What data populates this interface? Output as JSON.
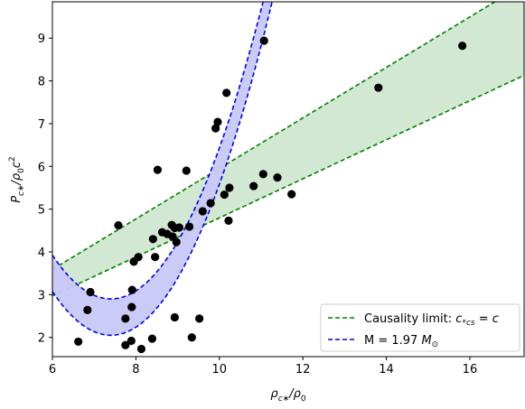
{
  "chart_data": {
    "type": "scatter",
    "xlabel": "ρ_{c*}/ρ_0",
    "ylabel": "P_{c*}/ρ_0 c^2",
    "xlim": [
      6.0,
      17.3
    ],
    "ylim": [
      1.55,
      9.85
    ],
    "xticks": [
      6,
      8,
      10,
      12,
      14,
      16
    ],
    "yticks": [
      2,
      3,
      4,
      5,
      6,
      7,
      8,
      9
    ],
    "grid": false,
    "legend_position": "lower-right",
    "points": [
      {
        "x": 6.62,
        "y": 1.9
      },
      {
        "x": 6.84,
        "y": 2.64
      },
      {
        "x": 6.91,
        "y": 3.06
      },
      {
        "x": 7.58,
        "y": 4.62
      },
      {
        "x": 7.75,
        "y": 2.44
      },
      {
        "x": 7.75,
        "y": 1.82
      },
      {
        "x": 7.89,
        "y": 1.92
      },
      {
        "x": 7.9,
        "y": 2.71
      },
      {
        "x": 7.91,
        "y": 3.11
      },
      {
        "x": 7.95,
        "y": 3.77
      },
      {
        "x": 8.06,
        "y": 3.88
      },
      {
        "x": 8.13,
        "y": 1.73
      },
      {
        "x": 8.39,
        "y": 1.97
      },
      {
        "x": 8.41,
        "y": 4.3
      },
      {
        "x": 8.46,
        "y": 3.88
      },
      {
        "x": 8.52,
        "y": 5.92
      },
      {
        "x": 8.63,
        "y": 4.46
      },
      {
        "x": 8.75,
        "y": 4.42
      },
      {
        "x": 8.86,
        "y": 4.63
      },
      {
        "x": 8.88,
        "y": 4.36
      },
      {
        "x": 8.93,
        "y": 2.47
      },
      {
        "x": 8.93,
        "y": 4.56
      },
      {
        "x": 8.97,
        "y": 4.23
      },
      {
        "x": 9.04,
        "y": 4.57
      },
      {
        "x": 9.21,
        "y": 5.9
      },
      {
        "x": 9.28,
        "y": 4.59
      },
      {
        "x": 9.34,
        "y": 2.0
      },
      {
        "x": 9.52,
        "y": 2.44
      },
      {
        "x": 9.6,
        "y": 4.95
      },
      {
        "x": 9.79,
        "y": 5.14
      },
      {
        "x": 9.91,
        "y": 6.89
      },
      {
        "x": 9.96,
        "y": 7.04
      },
      {
        "x": 10.12,
        "y": 5.34
      },
      {
        "x": 10.17,
        "y": 7.72
      },
      {
        "x": 10.22,
        "y": 4.73
      },
      {
        "x": 10.24,
        "y": 5.5
      },
      {
        "x": 10.82,
        "y": 5.54
      },
      {
        "x": 11.05,
        "y": 5.82
      },
      {
        "x": 11.07,
        "y": 8.94
      },
      {
        "x": 11.39,
        "y": 5.74
      },
      {
        "x": 11.73,
        "y": 5.35
      },
      {
        "x": 13.81,
        "y": 7.84
      },
      {
        "x": 15.82,
        "y": 8.82
      }
    ],
    "bands": [
      {
        "name": "Causality limit: c_{*cs} = c",
        "color": "#008000",
        "fill": "#d3e8d3",
        "upper": [
          [
            6.0,
            3.59
          ],
          [
            16.6,
            9.85
          ]
        ],
        "lower": [
          [
            6.0,
            2.97
          ],
          [
            17.3,
            8.13
          ]
        ]
      },
      {
        "name": "M = 1.97 M_⊙",
        "color": "#0000ee",
        "fill": "#c8c8f8",
        "upper_fn": {
          "a": 2.9,
          "b": 7.4,
          "c": 0.062,
          "d": 2.01
        },
        "lower_fn": {
          "a": 2.05,
          "b": 7.4,
          "c": 0.062,
          "d": 2.01
        }
      }
    ],
    "legend": [
      {
        "series": 0,
        "label_parts": [
          "Causality limit: ",
          "c",
          "*cs",
          " = ",
          "c"
        ]
      },
      {
        "series": 1,
        "label_parts": [
          "M = 1.97 ",
          "M",
          "⊙"
        ]
      }
    ],
    "axis_label_parts": {
      "x": [
        "ρ",
        "c∗",
        "/ρ",
        "0"
      ],
      "y": [
        "P",
        "c∗",
        "/ρ",
        "0",
        "c",
        "2"
      ]
    }
  }
}
